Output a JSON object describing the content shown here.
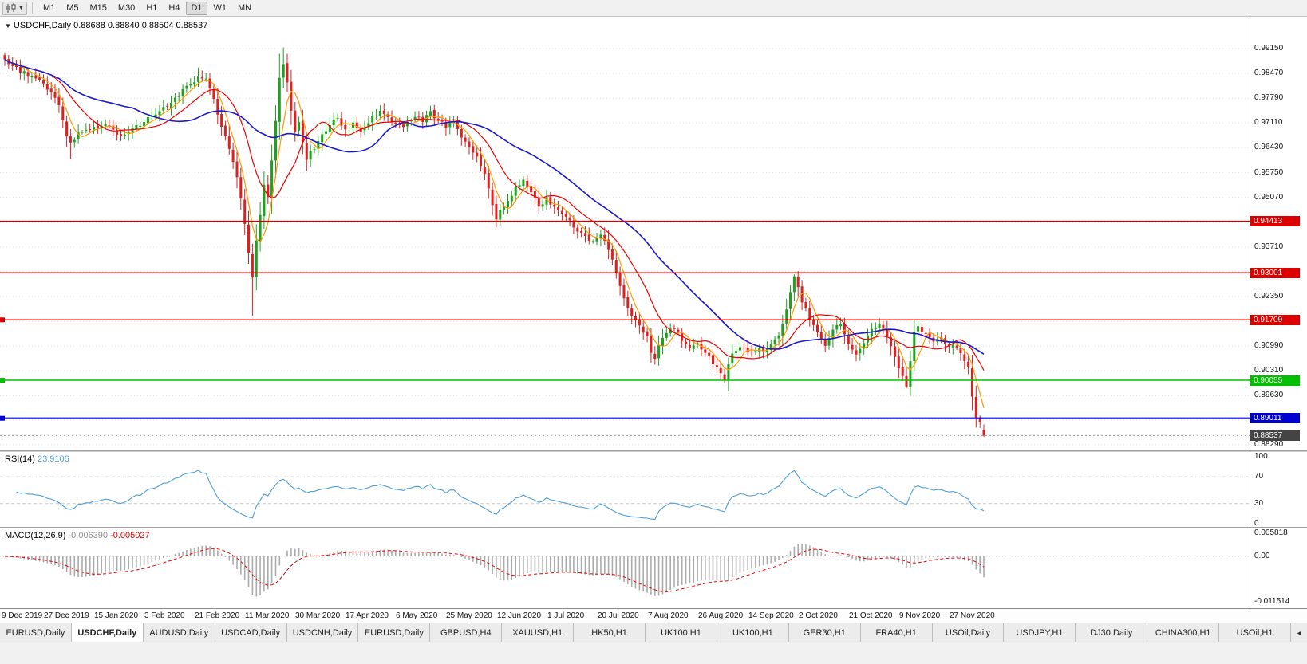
{
  "toolbar": {
    "timeframes": [
      "M1",
      "M5",
      "M15",
      "M30",
      "H1",
      "H4",
      "D1",
      "W1",
      "MN"
    ],
    "active_timeframe": "D1"
  },
  "chart_header": {
    "marker": "▼",
    "title_line": "USDCHF,Daily 0.88688 0.88840 0.88504 0.88537"
  },
  "rsi_panel": {
    "label": "RSI(14)",
    "value": "23.9106",
    "axis_labels": [
      {
        "v": 100,
        "label": "100"
      },
      {
        "v": 70,
        "label": "70"
      },
      {
        "v": 30,
        "label": "30"
      },
      {
        "v": 0,
        "label": "0"
      }
    ]
  },
  "macd_panel": {
    "label": "MACD(12,26,9)",
    "value_histogram": "-0.006390",
    "value_signal": "-0.005027",
    "axis_labels": [
      {
        "v": 0.005818,
        "label": "0.005818"
      },
      {
        "v": 0,
        "label": "0.00"
      },
      {
        "v": -0.011514,
        "label": "-0.011514"
      }
    ]
  },
  "price_axis": {
    "labels": [
      {
        "v": 0.9915,
        "label": "0.99150"
      },
      {
        "v": 0.9847,
        "label": "0.98470"
      },
      {
        "v": 0.9779,
        "label": "0.97790"
      },
      {
        "v": 0.9711,
        "label": "0.97110"
      },
      {
        "v": 0.9643,
        "label": "0.96430"
      },
      {
        "v": 0.9575,
        "label": "0.95750"
      },
      {
        "v": 0.9507,
        "label": "0.95070"
      },
      {
        "v": 0.9371,
        "label": "0.93710"
      },
      {
        "v": 0.9235,
        "label": "0.92350"
      },
      {
        "v": 0.9099,
        "label": "0.90990"
      },
      {
        "v": 0.9031,
        "label": "0.90310"
      },
      {
        "v": 0.8963,
        "label": "0.89630"
      },
      {
        "v": 0.8829,
        "label": "0.88290"
      }
    ],
    "tags": [
      {
        "v": 0.94413,
        "label": "0.94413",
        "color": "#dd0000"
      },
      {
        "v": 0.93001,
        "label": "0.93001",
        "color": "#dd0000"
      },
      {
        "v": 0.91709,
        "label": "0.91709",
        "color": "#dd0000"
      },
      {
        "v": 0.90055,
        "label": "0.90055",
        "color": "#00c000"
      },
      {
        "v": 0.89011,
        "label": "0.89011",
        "color": "#0000d0"
      },
      {
        "v": 0.88537,
        "label": "0.88537",
        "color": "#444444"
      }
    ]
  },
  "tabs": {
    "items": [
      "EURUSD,Daily",
      "USDCHF,Daily",
      "AUDUSD,Daily",
      "USDCAD,Daily",
      "USDCNH,Daily",
      "EURUSD,Daily",
      "GBPUSD,H4",
      "XAUUSD,H1",
      "HK50,H1",
      "UK100,H1",
      "UK100,H1",
      "GER30,H1",
      "FRA40,H1",
      "USOil,Daily",
      "USDJPY,H1",
      "DJ30,Daily",
      "CHINA300,H1",
      "USOil,H1"
    ],
    "active_index": 1,
    "scroll_icon": "◄"
  },
  "chart_data": {
    "type": "candlestick",
    "symbol": "USDCHF",
    "timeframe": "Daily",
    "last_candle": {
      "open": 0.88688,
      "high": 0.8884,
      "low": 0.88504,
      "close": 0.88537
    },
    "price_range_visible": {
      "min": 0.882,
      "max": 0.999
    },
    "grid_prices": [
      0.9915,
      0.9847,
      0.9779,
      0.9711,
      0.9643,
      0.9575,
      0.9507,
      0.9439,
      0.9371,
      0.9303,
      0.9235,
      0.9167,
      0.9099,
      0.9031,
      0.8963,
      0.8896,
      0.8829
    ],
    "horizontal_lines": [
      {
        "price": 0.94413,
        "color": "#dd0000",
        "width": 1.5,
        "handle": false
      },
      {
        "price": 0.93001,
        "color": "#dd0000",
        "width": 1.5,
        "handle": false
      },
      {
        "price": 0.91709,
        "color": "#dd0000",
        "width": 1.5,
        "handle": true
      },
      {
        "price": 0.90055,
        "color": "#00c000",
        "width": 1.5,
        "handle": true
      },
      {
        "price": 0.89011,
        "color": "#0000d0",
        "width": 2.2,
        "handle": true
      }
    ],
    "current_price_line": {
      "price": 0.88537,
      "style": "dotted",
      "color": "#999999"
    },
    "moving_averages": [
      {
        "period": 5,
        "type": "sma",
        "color": "#ff9900"
      },
      {
        "period": 13,
        "type": "sma",
        "color": "#ee0000"
      },
      {
        "period": 34,
        "type": "sma",
        "color": "#1a1acc"
      }
    ],
    "style": {
      "up": "#1fa11f",
      "down": "#dd2020",
      "rsi_line": "#4f9fd8",
      "macd_histogram": "#ababab",
      "macd_signal": "#ee0000"
    },
    "x_ticks": [
      {
        "idx": 0,
        "label": "9 Dec 2019"
      },
      {
        "idx": 13,
        "label": "27 Dec 2019"
      },
      {
        "idx": 26,
        "label": "15 Jan 2020"
      },
      {
        "idx": 39,
        "label": "3 Feb 2020"
      },
      {
        "idx": 52,
        "label": "21 Feb 2020"
      },
      {
        "idx": 65,
        "label": "11 Mar 2020"
      },
      {
        "idx": 78,
        "label": "30 Mar 2020"
      },
      {
        "idx": 91,
        "label": "17 Apr 2020"
      },
      {
        "idx": 104,
        "label": "6 May 2020"
      },
      {
        "idx": 117,
        "label": "25 May 2020"
      },
      {
        "idx": 130,
        "label": "12 Jun 2020"
      },
      {
        "idx": 143,
        "label": "1 Jul 2020"
      },
      {
        "idx": 156,
        "label": "20 Jul 2020"
      },
      {
        "idx": 169,
        "label": "7 Aug 2020"
      },
      {
        "idx": 182,
        "label": "26 Aug 2020"
      },
      {
        "idx": 195,
        "label": "14 Sep 2020"
      },
      {
        "idx": 208,
        "label": "2 Oct 2020"
      },
      {
        "idx": 221,
        "label": "21 Oct 2020"
      },
      {
        "idx": 234,
        "label": "9 Nov 2020"
      },
      {
        "idx": 247,
        "label": "27 Nov 2020"
      }
    ],
    "num_candles": 254,
    "noise": 0.0013,
    "close_waypoints": [
      [
        0,
        0.9885
      ],
      [
        2,
        0.9872
      ],
      [
        4,
        0.9852
      ],
      [
        6,
        0.9845
      ],
      [
        8,
        0.9832
      ],
      [
        10,
        0.9815
      ],
      [
        12,
        0.98
      ],
      [
        14,
        0.976
      ],
      [
        16,
        0.9672
      ],
      [
        17,
        0.9655
      ],
      [
        18,
        0.967
      ],
      [
        20,
        0.9692
      ],
      [
        23,
        0.97
      ],
      [
        26,
        0.9712
      ],
      [
        28,
        0.9688
      ],
      [
        30,
        0.9678
      ],
      [
        33,
        0.9695
      ],
      [
        36,
        0.9716
      ],
      [
        39,
        0.9738
      ],
      [
        42,
        0.9762
      ],
      [
        45,
        0.979
      ],
      [
        48,
        0.9818
      ],
      [
        50,
        0.9838
      ],
      [
        52,
        0.9828
      ],
      [
        54,
        0.9772
      ],
      [
        56,
        0.9705
      ],
      [
        58,
        0.964
      ],
      [
        60,
        0.9565
      ],
      [
        62,
        0.944
      ],
      [
        63,
        0.9355
      ],
      [
        64,
        0.929
      ],
      [
        65,
        0.9385
      ],
      [
        66,
        0.946
      ],
      [
        67,
        0.9545
      ],
      [
        68,
        0.9505
      ],
      [
        69,
        0.961
      ],
      [
        70,
        0.9715
      ],
      [
        71,
        0.984
      ],
      [
        72,
        0.9875
      ],
      [
        73,
        0.982
      ],
      [
        74,
        0.9745
      ],
      [
        75,
        0.969
      ],
      [
        76,
        0.9715
      ],
      [
        77,
        0.9655
      ],
      [
        78,
        0.9612
      ],
      [
        80,
        0.9645
      ],
      [
        82,
        0.9682
      ],
      [
        84,
        0.9706
      ],
      [
        86,
        0.973
      ],
      [
        88,
        0.969
      ],
      [
        90,
        0.9706
      ],
      [
        92,
        0.969
      ],
      [
        94,
        0.9712
      ],
      [
        96,
        0.9735
      ],
      [
        98,
        0.9742
      ],
      [
        100,
        0.9715
      ],
      [
        102,
        0.97
      ],
      [
        104,
        0.9712
      ],
      [
        106,
        0.9728
      ],
      [
        108,
        0.9716
      ],
      [
        110,
        0.9738
      ],
      [
        112,
        0.9722
      ],
      [
        114,
        0.97
      ],
      [
        116,
        0.9714
      ],
      [
        118,
        0.9668
      ],
      [
        120,
        0.964
      ],
      [
        122,
        0.9622
      ],
      [
        124,
        0.9565
      ],
      [
        126,
        0.949
      ],
      [
        127,
        0.9452
      ],
      [
        128,
        0.947
      ],
      [
        130,
        0.95
      ],
      [
        132,
        0.9532
      ],
      [
        134,
        0.955
      ],
      [
        136,
        0.9518
      ],
      [
        138,
        0.9482
      ],
      [
        140,
        0.9502
      ],
      [
        142,
        0.9475
      ],
      [
        144,
        0.9462
      ],
      [
        146,
        0.944
      ],
      [
        148,
        0.9415
      ],
      [
        150,
        0.9398
      ],
      [
        152,
        0.9388
      ],
      [
        154,
        0.9402
      ],
      [
        156,
        0.9362
      ],
      [
        158,
        0.9302
      ],
      [
        160,
        0.9232
      ],
      [
        162,
        0.9182
      ],
      [
        164,
        0.9152
      ],
      [
        166,
        0.9122
      ],
      [
        167,
        0.9085
      ],
      [
        168,
        0.9062
      ],
      [
        169,
        0.9105
      ],
      [
        171,
        0.9132
      ],
      [
        173,
        0.9152
      ],
      [
        175,
        0.9112
      ],
      [
        177,
        0.9092
      ],
      [
        179,
        0.9106
      ],
      [
        181,
        0.9082
      ],
      [
        183,
        0.905
      ],
      [
        185,
        0.9022
      ],
      [
        186,
        0.9012
      ],
      [
        188,
        0.9078
      ],
      [
        190,
        0.9102
      ],
      [
        192,
        0.9082
      ],
      [
        194,
        0.9092
      ],
      [
        196,
        0.9088
      ],
      [
        198,
        0.9108
      ],
      [
        200,
        0.9132
      ],
      [
        202,
        0.9195
      ],
      [
        204,
        0.9288
      ],
      [
        205,
        0.9262
      ],
      [
        206,
        0.9222
      ],
      [
        208,
        0.9178
      ],
      [
        210,
        0.9135
      ],
      [
        212,
        0.9102
      ],
      [
        214,
        0.9142
      ],
      [
        216,
        0.9162
      ],
      [
        218,
        0.9105
      ],
      [
        220,
        0.9072
      ],
      [
        222,
        0.9112
      ],
      [
        224,
        0.9142
      ],
      [
        226,
        0.916
      ],
      [
        228,
        0.913
      ],
      [
        230,
        0.9072
      ],
      [
        232,
        0.9012
      ],
      [
        233,
        0.8992
      ],
      [
        234,
        0.9052
      ],
      [
        235,
        0.9142
      ],
      [
        236,
        0.9152
      ],
      [
        238,
        0.9132
      ],
      [
        240,
        0.9112
      ],
      [
        242,
        0.9122
      ],
      [
        244,
        0.9102
      ],
      [
        246,
        0.9092
      ],
      [
        247,
        0.9082
      ],
      [
        248,
        0.9062
      ],
      [
        249,
        0.904
      ],
      [
        250,
        0.8962
      ],
      [
        251,
        0.8906
      ],
      [
        252,
        0.8892
      ],
      [
        253,
        0.88537
      ]
    ],
    "overrides": {
      "17": {
        "low": 0.9613
      },
      "52": {
        "high": 0.9848
      },
      "64": {
        "low": 0.9182
      },
      "71": {
        "high": 0.9901
      },
      "72": {
        "high": 0.9918
      },
      "78": {
        "low": 0.958
      },
      "127": {
        "low": 0.9425
      },
      "168": {
        "low": 0.9048
      },
      "186": {
        "low": 0.8998
      },
      "204": {
        "high": 0.9296
      },
      "233": {
        "low": 0.8983
      },
      "250": {
        "open": 0.9038
      },
      "253": {
        "open": 0.88688,
        "high": 0.8884,
        "low": 0.88504,
        "close": 0.88537
      }
    },
    "indicators": {
      "rsi": {
        "period": 14,
        "current": 23.9106,
        "levels": [
          70,
          30
        ],
        "scale": [
          0,
          100
        ]
      },
      "macd": {
        "fast": 12,
        "slow": 26,
        "signal": 9,
        "current_histogram": -0.00639,
        "current_signal": -0.005027,
        "axis_max": 0.005818,
        "axis_min": -0.011514
      }
    }
  }
}
